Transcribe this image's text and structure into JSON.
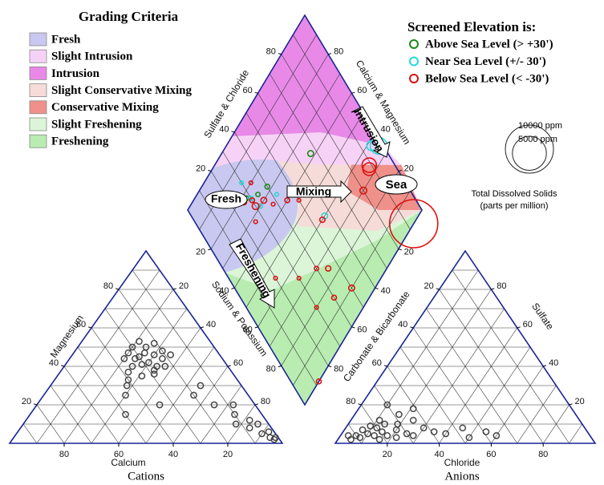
{
  "chart_data": {
    "type": "piper",
    "legend_title": "Grading Criteria",
    "criteria": [
      {
        "name": "Fresh",
        "color": "#c8c8f0"
      },
      {
        "name": "Slight Intrusion",
        "color": "#f7d2f7"
      },
      {
        "name": "Intrusion",
        "color": "#e889e8"
      },
      {
        "name": "Slight Conservative Mixing",
        "color": "#f6dcd8"
      },
      {
        "name": "Conservative Mixing",
        "color": "#f0908a"
      },
      {
        "name": "Slight Freshening",
        "color": "#dcf5d8"
      },
      {
        "name": "Freshening",
        "color": "#b8ecb0"
      }
    ],
    "elevation_title": "Screened Elevation is:",
    "series": [
      {
        "name": "Above Sea Level (> +30')",
        "color": "#1a8a1a",
        "points": [
          [
            78,
            28,
            100
          ],
          [
            74,
            34,
            80
          ],
          [
            62,
            67,
            150
          ],
          [
            72,
            40,
            100
          ]
        ]
      },
      {
        "name": "Near Sea Level (+/- 30')",
        "color": "#22d8d8",
        "points": [
          [
            80,
            25,
            100
          ],
          [
            76,
            30,
            80
          ],
          [
            82,
            22,
            100
          ],
          [
            70,
            32,
            80
          ],
          [
            38,
            95,
            400
          ],
          [
            35,
            98,
            1200
          ],
          [
            40,
            57,
            150
          ],
          [
            84,
            30,
            60
          ],
          [
            66,
            42,
            60
          ]
        ]
      },
      {
        "name": "Below Sea Level (< -30')",
        "color": "#dd1111",
        "points": [
          [
            75,
            30,
            100
          ],
          [
            70,
            35,
            150
          ],
          [
            85,
            20,
            80
          ],
          [
            78,
            26,
            120
          ],
          [
            65,
            38,
            60
          ],
          [
            72,
            30,
            200
          ],
          [
            60,
            45,
            100
          ],
          [
            55,
            50,
            60
          ],
          [
            40,
            55,
            120
          ],
          [
            30,
            40,
            80
          ],
          [
            20,
            30,
            60
          ],
          [
            25,
            45,
            120
          ],
          [
            15,
            40,
            100
          ],
          [
            10,
            50,
            150
          ],
          [
            30,
            80,
            200
          ],
          [
            34,
            89,
            900
          ],
          [
            33,
            88,
            700
          ],
          [
            0,
            93,
            10000
          ],
          [
            40,
            70,
            120
          ],
          [
            35,
            30,
            60
          ],
          [
            45,
            20,
            60
          ],
          [
            0,
            12,
            100
          ],
          [
            80,
            34,
            60
          ],
          [
            68,
            26,
            60
          ]
        ]
      }
    ],
    "tds": {
      "sizes": [
        {
          "value": 10000,
          "label": "10000 ppm"
        },
        {
          "value": 5000,
          "label": "5000 ppm"
        }
      ],
      "title": "Total Dissolved Solids",
      "subtitle": "(parts per million)"
    },
    "region_labels": [
      "Fresh",
      "Mixing",
      "Intrusion",
      "Sea",
      "Freshening"
    ],
    "ticks": [
      20,
      40,
      60,
      80
    ],
    "diamond": {
      "left_axis": "Sulfate & Chloride",
      "right_axis": "Calcium & Magnesium"
    },
    "cations": {
      "caption": "Cations",
      "left_axis": "Magnesium",
      "right_axis": "Sodium & Potassium",
      "bottom_axis": "Calcium",
      "points": [
        [
          27,
          47
        ],
        [
          30,
          45
        ],
        [
          25,
          50
        ],
        [
          28,
          42
        ],
        [
          32,
          44
        ],
        [
          24,
          46
        ],
        [
          26,
          40
        ],
        [
          30,
          50
        ],
        [
          22,
          44
        ],
        [
          35,
          40
        ],
        [
          28,
          38
        ],
        [
          20,
          48
        ],
        [
          33,
          47
        ],
        [
          26,
          53
        ],
        [
          29,
          36
        ],
        [
          23,
          40
        ],
        [
          38,
          37
        ],
        [
          31,
          41
        ],
        [
          36,
          44
        ],
        [
          21,
          52
        ],
        [
          40,
          33
        ],
        [
          18,
          46
        ],
        [
          34,
          35
        ],
        [
          45,
          25
        ],
        [
          35,
          20
        ],
        [
          20,
          25
        ],
        [
          15,
          20
        ],
        [
          12,
          10
        ],
        [
          8,
          8
        ],
        [
          5,
          5
        ],
        [
          3,
          3
        ],
        [
          2,
          2
        ],
        [
          10,
          15
        ],
        [
          6,
          12
        ],
        [
          50,
          15
        ],
        [
          42,
          30
        ],
        [
          15,
          30
        ],
        [
          8,
          20
        ],
        [
          4,
          10
        ],
        [
          2,
          6
        ],
        [
          1,
          3
        ]
      ]
    },
    "anions": {
      "caption": "Anions",
      "left_axis": "Carbonate & Bicarbonate",
      "right_axis": "Sulfate",
      "bottom_axis": "Chloride",
      "points": [
        [
          12,
          8
        ],
        [
          10,
          5
        ],
        [
          15,
          6
        ],
        [
          8,
          3
        ],
        [
          18,
          4
        ],
        [
          20,
          7
        ],
        [
          14,
          10
        ],
        [
          6,
          4
        ],
        [
          22,
          3
        ],
        [
          25,
          5
        ],
        [
          5,
          2
        ],
        [
          16,
          2
        ],
        [
          11,
          12
        ],
        [
          9,
          9
        ],
        [
          28,
          4
        ],
        [
          30,
          8
        ],
        [
          13,
          4
        ],
        [
          19,
          10
        ],
        [
          24,
          12
        ],
        [
          7,
          7
        ],
        [
          35,
          6
        ],
        [
          40,
          5
        ],
        [
          45,
          8
        ],
        [
          50,
          3
        ],
        [
          55,
          6
        ],
        [
          60,
          4
        ],
        [
          3,
          4
        ],
        [
          17,
          15
        ],
        [
          21,
          18
        ],
        [
          10,
          20
        ]
      ]
    }
  }
}
